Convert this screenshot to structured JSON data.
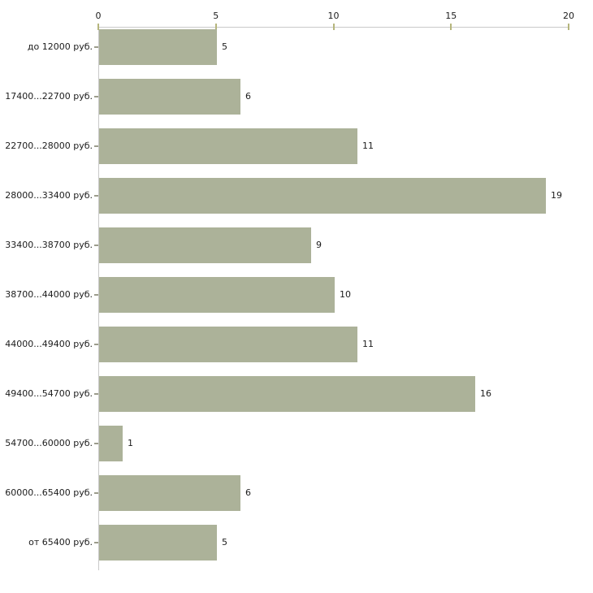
{
  "chart_data": {
    "type": "bar",
    "orientation": "horizontal",
    "title": "",
    "xlabel": "",
    "ylabel": "",
    "categories": [
      "до 12000 руб.",
      "17400...22700 руб.",
      "22700...28000 руб.",
      "28000...33400 руб.",
      "33400...38700 руб.",
      "38700...44000 руб.",
      "44000...49400 руб.",
      "49400...54700 руб.",
      "54700...60000 руб.",
      "60000...65400 руб.",
      "от 65400 руб."
    ],
    "values": [
      5,
      6,
      11,
      19,
      9,
      10,
      11,
      16,
      1,
      6,
      5
    ],
    "xlim": [
      0,
      20
    ],
    "xticks": [
      0,
      5,
      10,
      15,
      20
    ],
    "axis_position": "top",
    "grid": false,
    "legend": null,
    "value_labels_shown": true,
    "colors": {
      "bar": "#acb299",
      "axis_line": "#c9c9c9",
      "x_tick": "#b5b57c",
      "category_tick": "#9c9c8c",
      "text": "#1c1c1c",
      "background": "#ffffff"
    }
  }
}
